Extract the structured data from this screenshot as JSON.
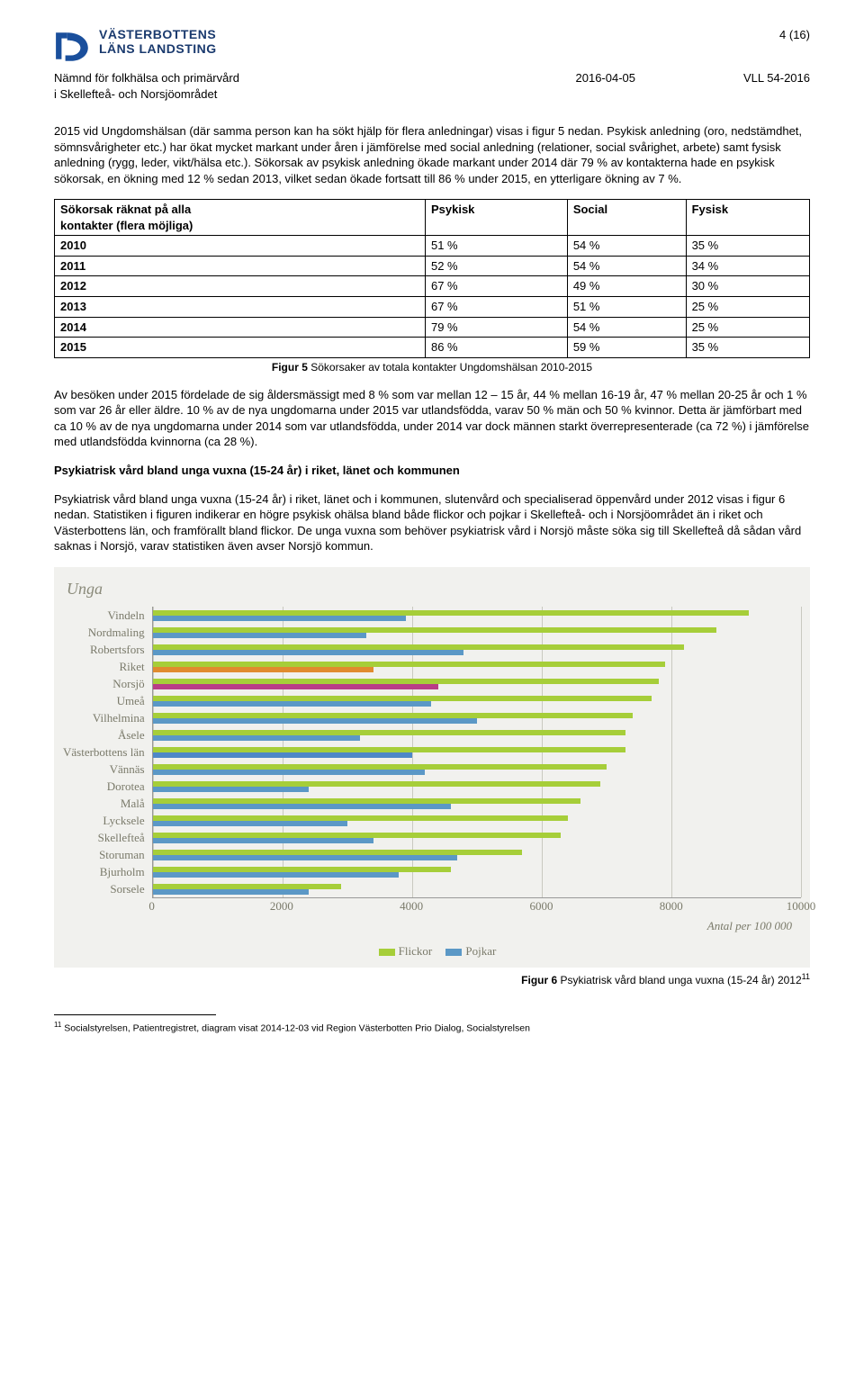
{
  "page_number": "4 (16)",
  "logo": {
    "line1": "VÄSTERBOTTENS",
    "line2": "LÄNS LANDSTING"
  },
  "meta": {
    "committee_line1": "Nämnd för folkhälsa och primärvård",
    "committee_line2": "i Skellefteå- och Norsjöområdet",
    "date": "2016-04-05",
    "ref": "VLL 54-2016"
  },
  "para1": "2015 vid Ungdomshälsan (där samma person kan ha sökt hjälp för flera anledningar) visas i figur 5 nedan. Psykisk anledning (oro, nedstämdhet, sömnsvårigheter etc.) har ökat mycket markant under åren i jämförelse med social anledning (relationer, social svårighet, arbete) samt fysisk anledning (rygg, leder, vikt/hälsa etc.). Sökorsak av psykisk anledning ökade markant under 2014 där 79 % av kontakterna hade en psykisk sökorsak, en ökning med 12 % sedan 2013, vilket sedan ökade fortsatt till 86 % under 2015, en ytterligare ökning av 7 %.",
  "table": {
    "header_col0_l1": "Sökorsak räknat på alla",
    "header_col0_l2": "kontakter (flera möjliga)",
    "headers": [
      "Psykisk",
      "Social",
      "Fysisk"
    ],
    "rows": [
      {
        "year": "2010",
        "psykisk": "51 %",
        "social": "54 %",
        "fysisk": "35 %"
      },
      {
        "year": "2011",
        "psykisk": "52 %",
        "social": "54 %",
        "fysisk": "34 %"
      },
      {
        "year": "2012",
        "psykisk": "67 %",
        "social": "49 %",
        "fysisk": "30 %"
      },
      {
        "year": "2013",
        "psykisk": "67 %",
        "social": "51 %",
        "fysisk": "25 %"
      },
      {
        "year": "2014",
        "psykisk": "79 %",
        "social": "54 %",
        "fysisk": "25 %"
      },
      {
        "year": "2015",
        "psykisk": "86 %",
        "social": "59 %",
        "fysisk": "35 %"
      }
    ]
  },
  "fig5_caption_prefix": "Figur 5",
  "fig5_caption": " Sökorsaker av totala kontakter Ungdomshälsan 2010-2015",
  "para2": "Av besöken under 2015 fördelade de sig åldersmässigt med 8 % som var mellan 12 – 15 år, 44 % mellan 16-19 år, 47 % mellan 20-25 år och 1 % som var 26 år eller äldre. 10 % av de nya ungdomarna under 2015 var utlandsfödda, varav 50 % män och 50 % kvinnor. Detta är jämförbart med ca 10 % av de nya ungdomarna under 2014 som var utlandsfödda, under 2014 var dock männen starkt överrepresenterade (ca 72 %) i jämförelse med utlandsfödda kvinnorna (ca 28 %).",
  "heading2": "Psykiatrisk vård bland unga vuxna (15-24 år) i riket, länet och kommunen",
  "para3": "Psykiatrisk vård bland unga vuxna (15-24 år) i riket, länet och i kommunen, slutenvård och specialiserad öppenvård under 2012 visas i figur 6 nedan. Statistiken i figuren indikerar en högre psykisk ohälsa bland både flickor och pojkar i Skellefteå- och i Norsjöområdet än i riket och Västerbottens län, och framförallt bland flickor. De unga vuxna som behöver psykiatrisk vård i Norsjö måste söka sig till Skellefteå då sådan vård saknas i Norsjö, varav statistiken även avser Norsjö kommun.",
  "chart": {
    "title": "Unga",
    "x_max": 10000,
    "x_ticks": [
      0,
      2000,
      4000,
      6000,
      8000,
      10000
    ],
    "x_label": "Antal per 100 000",
    "color_flickor": "#a6ce39",
    "color_pojkar_default": "#5b98c6",
    "color_riket_pojkar": "#e08b2f",
    "color_norsjo_pojkar": "#b93d87",
    "color_vbl_pojkar": "#4d87c7",
    "bg": "#f1f1ee",
    "legend": {
      "flickor": "Flickor",
      "pojkar": "Pojkar"
    },
    "rows": [
      {
        "label": "Vindeln",
        "flickor": 9200,
        "pojkar": 3900,
        "pojkar_color": "#5b98c6"
      },
      {
        "label": "Nordmaling",
        "flickor": 8700,
        "pojkar": 3300,
        "pojkar_color": "#5b98c6"
      },
      {
        "label": "Robertsfors",
        "flickor": 8200,
        "pojkar": 4800,
        "pojkar_color": "#5b98c6"
      },
      {
        "label": "Riket",
        "flickor": 7900,
        "pojkar": 3400,
        "pojkar_color": "#e08b2f"
      },
      {
        "label": "Norsjö",
        "flickor": 7800,
        "pojkar": 4400,
        "pojkar_color": "#b93d87"
      },
      {
        "label": "Umeå",
        "flickor": 7700,
        "pojkar": 4300,
        "pojkar_color": "#5b98c6"
      },
      {
        "label": "Vilhelmina",
        "flickor": 7400,
        "pojkar": 5000,
        "pojkar_color": "#5b98c6"
      },
      {
        "label": "Åsele",
        "flickor": 7300,
        "pojkar": 3200,
        "pojkar_color": "#5b98c6"
      },
      {
        "label": "Västerbottens län",
        "flickor": 7300,
        "pojkar": 4000,
        "pojkar_color": "#4d87c7"
      },
      {
        "label": "Vännäs",
        "flickor": 7000,
        "pojkar": 4200,
        "pojkar_color": "#5b98c6"
      },
      {
        "label": "Dorotea",
        "flickor": 6900,
        "pojkar": 2400,
        "pojkar_color": "#5b98c6"
      },
      {
        "label": "Malå",
        "flickor": 6600,
        "pojkar": 4600,
        "pojkar_color": "#5b98c6"
      },
      {
        "label": "Lycksele",
        "flickor": 6400,
        "pojkar": 3000,
        "pojkar_color": "#5b98c6"
      },
      {
        "label": "Skellefteå",
        "flickor": 6300,
        "pojkar": 3400,
        "pojkar_color": "#5b98c6"
      },
      {
        "label": "Storuman",
        "flickor": 5700,
        "pojkar": 4700,
        "pojkar_color": "#5b98c6"
      },
      {
        "label": "Bjurholm",
        "flickor": 4600,
        "pojkar": 3800,
        "pojkar_color": "#5b98c6"
      },
      {
        "label": "Sorsele",
        "flickor": 2900,
        "pojkar": 2400,
        "pojkar_color": "#5b98c6"
      }
    ]
  },
  "fig6_caption_prefix": "Figur 6",
  "fig6_caption": " Psykiatrisk vård bland unga vuxna (15-24 år) 2012",
  "fig6_sup": "11",
  "footnote_num": "11",
  "footnote_text": " Socialstyrelsen, Patientregistret, diagram visat 2014-12-03 vid Region Västerbotten Prio Dialog, Socialstyrelsen"
}
